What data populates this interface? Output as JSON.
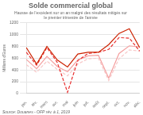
{
  "chart_data": {
    "type": "line",
    "title": "Solde commercial global",
    "subtitle": "Hausse de l'excédent sur un an malgré des résultats mitigés sur\nle premier trimestre de l'année",
    "ylabel": "Millions d'Euros",
    "source": "Source: Douanes - OFP rév. à 1, 2019",
    "categories": [
      "jan.",
      "fév.",
      "mars",
      "avr.",
      "mai",
      "juin",
      "juil.",
      "août",
      "sept.",
      "oct.",
      "nov.",
      "déc."
    ],
    "series": [
      {
        "color": "#cc2200",
        "line_style": "solid",
        "values": [
          780,
          500,
          800,
          570,
          450,
          670,
          700,
          700,
          830,
          1020,
          1100,
          780
        ]
      },
      {
        "color": "#e83030",
        "line_style": "dashed",
        "values": [
          700,
          480,
          780,
          530,
          20,
          560,
          680,
          700,
          750,
          950,
          940,
          720
        ]
      },
      {
        "color": "#f4a0a0",
        "line_style": "solid",
        "values": [
          580,
          420,
          630,
          460,
          370,
          570,
          640,
          650,
          260,
          680,
          810,
          790
        ]
      },
      {
        "color": "#f8c8c8",
        "line_style": "dashed",
        "values": [
          490,
          360,
          550,
          410,
          300,
          500,
          590,
          600,
          220,
          590,
          740,
          720
        ]
      }
    ],
    "ylim": [
      0,
      1200
    ],
    "yticks": [
      0,
      200,
      400,
      600,
      800,
      1000,
      1200
    ],
    "grid": "y"
  }
}
